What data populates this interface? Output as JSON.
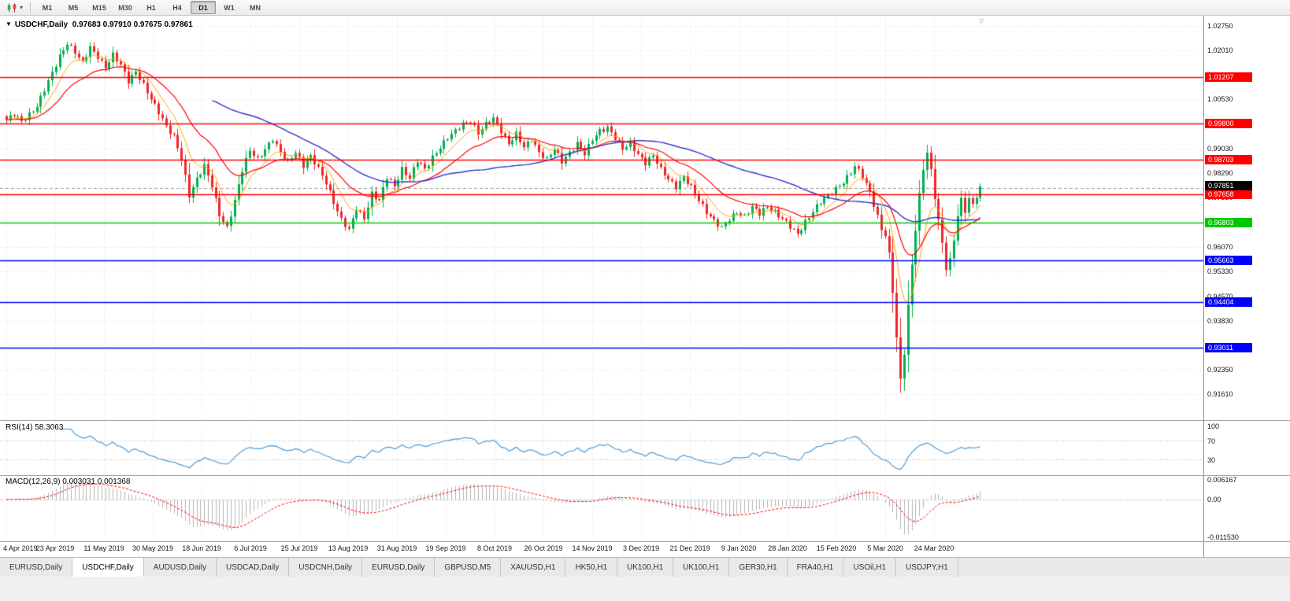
{
  "toolbar": {
    "dropdown_glyph": "▾",
    "timeframes": [
      {
        "label": "M1",
        "active": false
      },
      {
        "label": "M5",
        "active": false
      },
      {
        "label": "M15",
        "active": false
      },
      {
        "label": "M30",
        "active": false
      },
      {
        "label": "H1",
        "active": false
      },
      {
        "label": "H4",
        "active": false
      },
      {
        "label": "D1",
        "active": true
      },
      {
        "label": "W1",
        "active": false
      },
      {
        "label": "MN",
        "active": false
      }
    ]
  },
  "chart": {
    "marker": "▼",
    "title_symbol": "USDCHF,Daily",
    "title_quote": "0.97683 0.97910 0.97675 0.97861",
    "current_price": {
      "label": "0.97851",
      "value": 0.97851,
      "color": "#000000"
    },
    "levels": [
      {
        "label": "1.01207",
        "value": 1.01207,
        "color": "#ff0000"
      },
      {
        "label": "0.99800",
        "value": 0.998,
        "color": "#ff0000"
      },
      {
        "label": "0.98703",
        "value": 0.98703,
        "color": "#ff0000"
      },
      {
        "label": "0.97658",
        "value": 0.97658,
        "color": "#ff0000"
      },
      {
        "label": "0.96803",
        "value": 0.96803,
        "color": "#00c800"
      },
      {
        "label": "0.95663",
        "value": 0.95663,
        "color": "#0000ff"
      },
      {
        "label": "0.94404",
        "value": 0.94404,
        "color": "#0000ff"
      },
      {
        "label": "0.93011",
        "value": 0.93011,
        "color": "#0000ff"
      }
    ],
    "y_ticks": [
      "1.02750",
      "1.02010",
      "1.00530",
      "0.99030",
      "0.98290",
      "0.97550",
      "0.96070",
      "0.95330",
      "0.94570",
      "0.93830",
      "0.92350",
      "0.91610"
    ],
    "x_labels": [
      "4 Apr 2019",
      "23 Apr 2019",
      "11 May 2019",
      "30 May 2019",
      "18 Jun 2019",
      "6 Jul 2019",
      "25 Jul 2019",
      "13 Aug 2019",
      "31 Aug 2019",
      "19 Sep 2019",
      "8 Oct 2019",
      "26 Oct 2019",
      "14 Nov 2019",
      "3 Dec 2019",
      "21 Dec 2019",
      "9 Jan 2020",
      "28 Jan 2020",
      "15 Feb 2020",
      "5 Mar 2020",
      "24 Mar 2020"
    ]
  },
  "rsi": {
    "title": "RSI(14) 58.3063",
    "value": "58.3063",
    "period": 14,
    "levels": [
      "100",
      "70",
      "30"
    ]
  },
  "macd": {
    "title": "MACD(12,26,9) 0.003031 0.001368",
    "values": [
      "0.003031",
      "0.001368"
    ],
    "ticks": [
      "0.006167",
      "0.00",
      "-0.011530"
    ]
  },
  "colors": {
    "candle_up": "#00b050",
    "candle_down": "#f02525",
    "ma_fast": "#ffa500",
    "ma_mid": "#ff0000",
    "ma_slow": "#3333cc",
    "rsi_line": "#4f9bd5",
    "macd_hist": "#b4b4b4",
    "macd_signal": "#ff0000",
    "grid": "#e0e0e0",
    "bid_line": "#999999"
  },
  "chart_data": {
    "type": "candlestick",
    "symbol": "USDCHF",
    "period": "Daily",
    "ohlc_display": {
      "open": "0.97683",
      "high": "0.97910",
      "low": "0.97675",
      "close": "0.97861"
    },
    "ylim": [
      0.9135,
      1.029
    ],
    "candle_count": 257,
    "wiggle_amplitude": 0.0007,
    "close_waypoints": [
      [
        0,
        0.999
      ],
      [
        2,
        1.0005
      ],
      [
        4,
        0.9985
      ],
      [
        6,
        1.001
      ],
      [
        8,
        1.0035
      ],
      [
        10,
        1.008
      ],
      [
        12,
        1.013
      ],
      [
        14,
        1.0185
      ],
      [
        16,
        1.0226
      ],
      [
        18,
        1.0195
      ],
      [
        20,
        1.016
      ],
      [
        22,
        1.021
      ],
      [
        24,
        1.0185
      ],
      [
        26,
        1.015
      ],
      [
        28,
        1.0185
      ],
      [
        30,
        1.0155
      ],
      [
        32,
        1.011
      ],
      [
        34,
        1.014
      ],
      [
        36,
        1.0095
      ],
      [
        38,
        1.005
      ],
      [
        40,
        1.0015
      ],
      [
        42,
        0.9975
      ],
      [
        44,
        0.994
      ],
      [
        46,
        0.987
      ],
      [
        48,
        0.976
      ],
      [
        50,
        0.9815
      ],
      [
        52,
        0.9855
      ],
      [
        54,
        0.979
      ],
      [
        56,
        0.97
      ],
      [
        58,
        0.9665
      ],
      [
        60,
        0.975
      ],
      [
        62,
        0.984
      ],
      [
        64,
        0.9895
      ],
      [
        66,
        0.987
      ],
      [
        68,
        0.9905
      ],
      [
        70,
        0.9935
      ],
      [
        72,
        0.989
      ],
      [
        74,
        0.986
      ],
      [
        76,
        0.9895
      ],
      [
        78,
        0.9855
      ],
      [
        80,
        0.988
      ],
      [
        82,
        0.984
      ],
      [
        84,
        0.98
      ],
      [
        86,
        0.9745
      ],
      [
        88,
        0.969
      ],
      [
        90,
        0.9655
      ],
      [
        92,
        0.972
      ],
      [
        94,
        0.9695
      ],
      [
        96,
        0.977
      ],
      [
        98,
        0.9745
      ],
      [
        100,
        0.9815
      ],
      [
        102,
        0.979
      ],
      [
        104,
        0.9845
      ],
      [
        106,
        0.9815
      ],
      [
        108,
        0.9865
      ],
      [
        110,
        0.984
      ],
      [
        112,
        0.988
      ],
      [
        114,
        0.991
      ],
      [
        116,
        0.9935
      ],
      [
        118,
        0.9955
      ],
      [
        120,
        0.998
      ],
      [
        122,
        0.999
      ],
      [
        124,
        0.995
      ],
      [
        126,
        0.9975
      ],
      [
        128,
        0.9995
      ],
      [
        130,
        0.996
      ],
      [
        132,
        0.992
      ],
      [
        134,
        0.9945
      ],
      [
        136,
        0.9905
      ],
      [
        138,
        0.9935
      ],
      [
        140,
        0.9895
      ],
      [
        142,
        0.987
      ],
      [
        144,
        0.99
      ],
      [
        146,
        0.9865
      ],
      [
        148,
        0.9895
      ],
      [
        150,
        0.992
      ],
      [
        152,
        0.9885
      ],
      [
        154,
        0.993
      ],
      [
        156,
        0.996
      ],
      [
        158,
        0.997
      ],
      [
        160,
        0.9935
      ],
      [
        162,
        0.99
      ],
      [
        164,
        0.992
      ],
      [
        166,
        0.989
      ],
      [
        168,
        0.986
      ],
      [
        170,
        0.988
      ],
      [
        172,
        0.984
      ],
      [
        174,
        0.9815
      ],
      [
        176,
        0.979
      ],
      [
        178,
        0.9815
      ],
      [
        180,
        0.9785
      ],
      [
        182,
        0.975
      ],
      [
        184,
        0.9715
      ],
      [
        186,
        0.9685
      ],
      [
        188,
        0.966
      ],
      [
        190,
        0.969
      ],
      [
        192,
        0.9715
      ],
      [
        194,
        0.97
      ],
      [
        196,
        0.9725
      ],
      [
        198,
        0.9705
      ],
      [
        200,
        0.973
      ],
      [
        202,
        0.9715
      ],
      [
        204,
        0.969
      ],
      [
        206,
        0.9665
      ],
      [
        208,
        0.9645
      ],
      [
        210,
        0.9685
      ],
      [
        212,
        0.9715
      ],
      [
        214,
        0.974
      ],
      [
        216,
        0.976
      ],
      [
        218,
        0.9785
      ],
      [
        220,
        0.9805
      ],
      [
        222,
        0.983
      ],
      [
        223,
        0.9848
      ],
      [
        225,
        0.982
      ],
      [
        227,
        0.9775
      ],
      [
        229,
        0.97
      ],
      [
        230,
        0.966
      ],
      [
        231,
        0.964
      ],
      [
        232,
        0.958
      ],
      [
        233,
        0.947
      ],
      [
        234,
        0.933
      ],
      [
        235,
        0.9205
      ],
      [
        236,
        0.929
      ],
      [
        237,
        0.943
      ],
      [
        238,
        0.9555
      ],
      [
        239,
        0.966
      ],
      [
        240,
        0.976
      ],
      [
        241,
        0.984
      ],
      [
        242,
        0.989
      ],
      [
        243,
        0.9835
      ],
      [
        244,
        0.976
      ],
      [
        245,
        0.969
      ],
      [
        246,
        0.962
      ],
      [
        247,
        0.9545
      ],
      [
        248,
        0.9565
      ],
      [
        249,
        0.9625
      ],
      [
        250,
        0.97
      ],
      [
        251,
        0.9745
      ],
      [
        252,
        0.9715
      ],
      [
        253,
        0.9755
      ],
      [
        254,
        0.9735
      ],
      [
        255,
        0.9765
      ],
      [
        256,
        0.9786
      ]
    ],
    "overlays": [
      {
        "name": "EMA fast",
        "type": "ema",
        "period": 8,
        "color": "#ffa500"
      },
      {
        "name": "EMA mid",
        "type": "ema",
        "period": 21,
        "color": "#ff0000"
      },
      {
        "name": "SMA slow",
        "type": "sma",
        "period": 55,
        "color": "#3333cc"
      }
    ],
    "indicators": [
      {
        "name": "RSI",
        "params": [
          14
        ],
        "display_value": "58.3063"
      },
      {
        "name": "MACD",
        "params": [
          12,
          26,
          9
        ],
        "display_values": [
          "0.003031",
          "0.001368"
        ]
      }
    ],
    "horizontal_levels": [
      1.01207,
      0.998,
      0.98703,
      0.97658,
      0.96803,
      0.95663,
      0.94404,
      0.93011
    ],
    "current_bid": 0.97851
  },
  "tabs": {
    "items": [
      {
        "label": "EURUSD,Daily",
        "active": false
      },
      {
        "label": "USDCHF,Daily",
        "active": true
      },
      {
        "label": "AUDUSD,Daily",
        "active": false
      },
      {
        "label": "USDCAD,Daily",
        "active": false
      },
      {
        "label": "USDCNH,Daily",
        "active": false
      },
      {
        "label": "EURUSD,Daily",
        "active": false
      },
      {
        "label": "GBPUSD,M5",
        "active": false
      },
      {
        "label": "XAUUSD,H1",
        "active": false
      },
      {
        "label": "HK50,H1",
        "active": false
      },
      {
        "label": "UK100,H1",
        "active": false
      },
      {
        "label": "UK100,H1",
        "active": false
      },
      {
        "label": "GER30,H1",
        "active": false
      },
      {
        "label": "FRA40,H1",
        "active": false
      },
      {
        "label": "USOil,H1",
        "active": false
      },
      {
        "label": "USDJPY,H1",
        "active": false
      }
    ]
  }
}
